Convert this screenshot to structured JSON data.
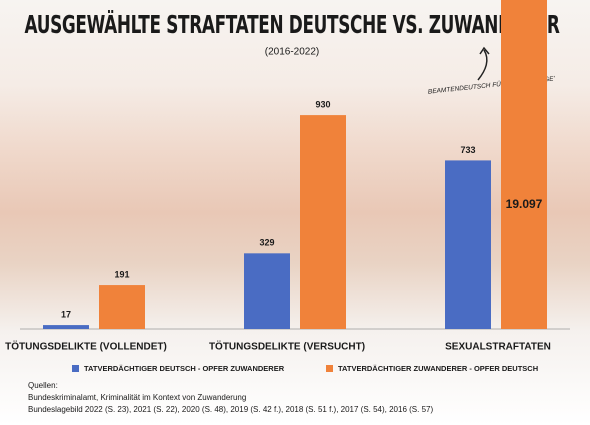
{
  "chart_data": {
    "type": "bar",
    "title": "AUSGEWÄHLTE STRAFTATEN DEUTSCHE VS. ZUWANDERER",
    "subtitle": "(2016-2022)",
    "categories": [
      "TÖTUNGSDELIKTE (VOLLENDET)",
      "TÖTUNGSDELIKTE (VERSUCHT)",
      "SEXUALSTRAFTATEN"
    ],
    "series": [
      {
        "name": "TATVERDÄCHTIGER DEUTSCH - OPFER ZUWANDERER",
        "color": "#4a6cc3",
        "values": [
          17,
          329,
          733
        ]
      },
      {
        "name": "TATVERDÄCHTIGER ZUWANDERER - OPFER DEUTSCH",
        "color": "#f0823a",
        "values": [
          191,
          930,
          19097
        ],
        "value_labels": [
          "191",
          "930",
          "19.097"
        ]
      }
    ],
    "annotation": "BEAMTENDEUTSCH FÜR 'FLÜCHTLINGE'",
    "source": [
      "Quellen:",
      "Bundeskriminalamt, Kriminalität im Kontext von Zuwanderung",
      "Bundeslagebild 2022 (S. 23), 2021 (S. 22), 2020 (S. 48), 2019 (S. 42 f.), 2018 (S. 51 f.), 2017 (S. 54), 2016 (S. 57)"
    ]
  }
}
